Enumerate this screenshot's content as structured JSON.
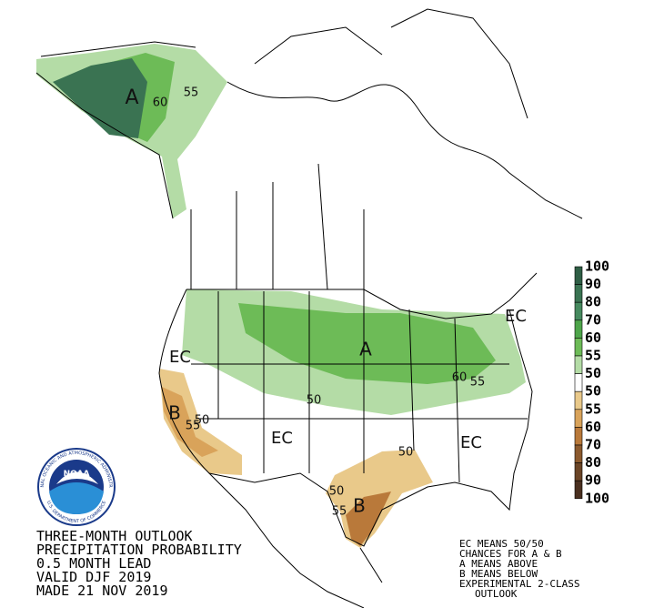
{
  "title_lines": [
    "THREE-MONTH OUTLOOK",
    "PRECIPITATION PROBABILITY",
    "0.5 MONTH LEAD",
    "VALID DJF 2019",
    "MADE 21 NOV 2019"
  ],
  "notes": [
    "EC MEANS 50/50",
    "CHANCES FOR A & B",
    "A MEANS ABOVE",
    "B MEANS BELOW",
    "EXPERIMENTAL 2-CLASS",
    "OUTLOOK"
  ],
  "logo": {
    "name": "NOAA",
    "ring_top": "NATIONAL OCEANIC AND ATMOSPHERIC ADMINISTRATION",
    "ring_bottom": "U.S. DEPARTMENT OF COMMERCE"
  },
  "legend": {
    "labels": [
      100,
      90,
      80,
      70,
      60,
      55,
      50,
      50,
      55,
      60,
      70,
      80,
      90,
      100
    ],
    "colors": [
      "#2f5e45",
      "#3a7352",
      "#468a5f",
      "#4ea54a",
      "#6dbb57",
      "#b4dca6",
      "#ffffff",
      "#e9c98a",
      "#d9a35a",
      "#b9793a",
      "#8c5a2e",
      "#6b4527",
      "#4a3020"
    ]
  },
  "map_labels": [
    "A",
    "60",
    "55",
    "EC",
    "A",
    "60",
    "55",
    "50",
    "B",
    "55",
    "50",
    "EC",
    "EC",
    "50",
    "50",
    "55",
    "B",
    "EC"
  ]
}
